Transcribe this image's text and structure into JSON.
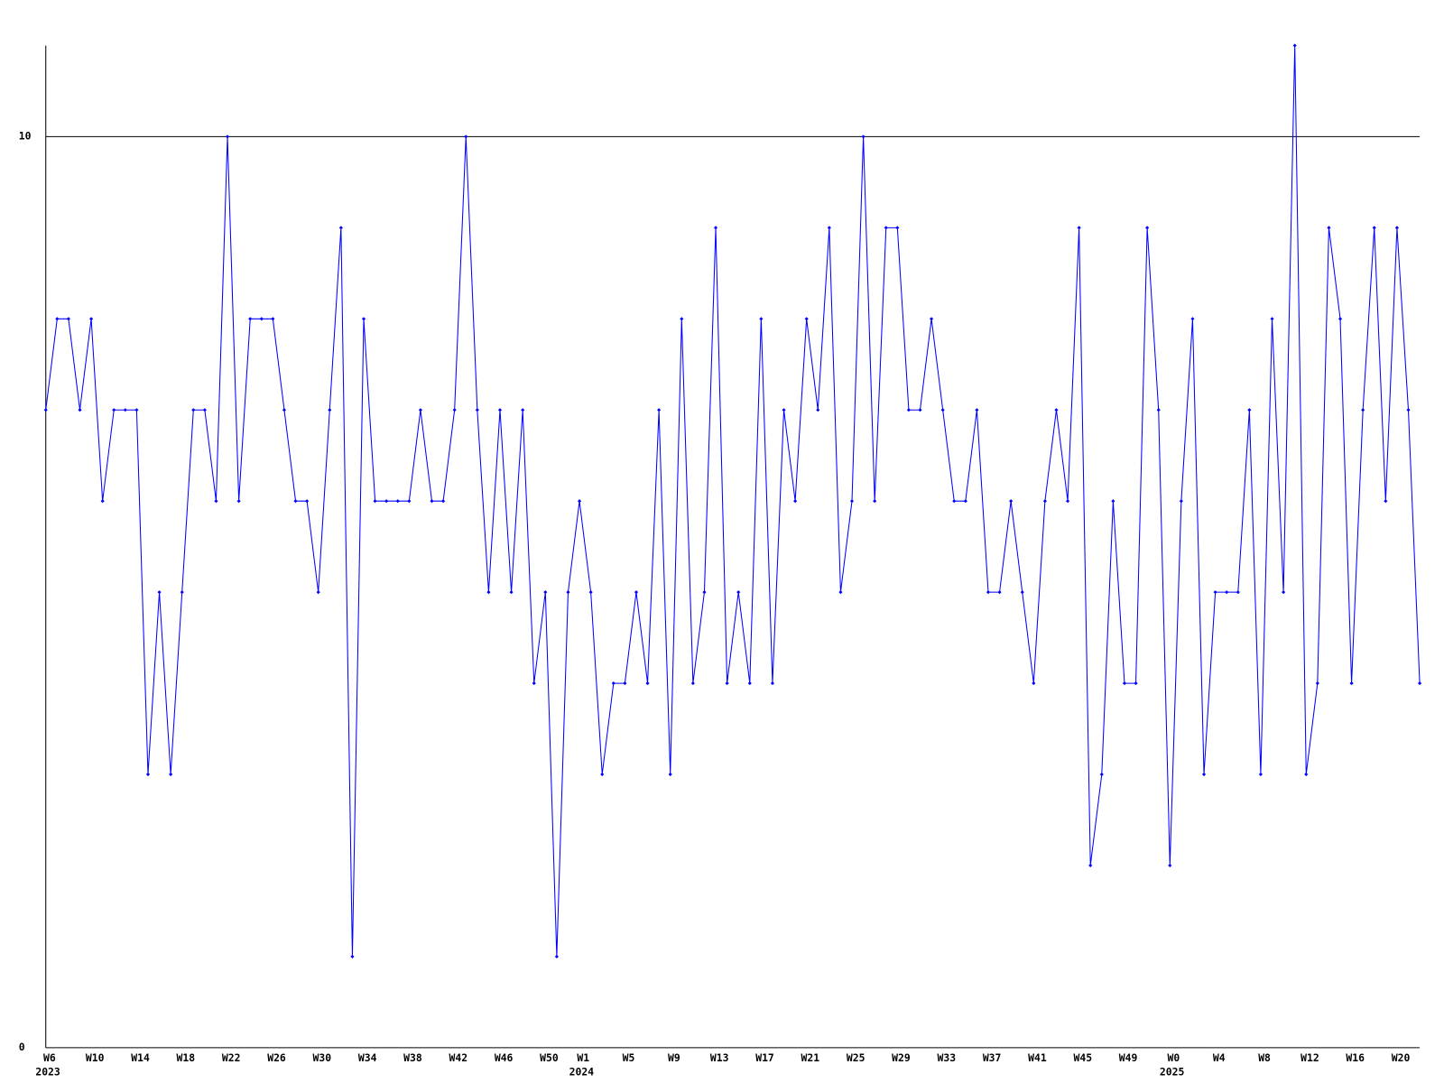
{
  "chart_data": {
    "type": "line",
    "color": "#0000ff",
    "categories": [
      "W6",
      null,
      null,
      null,
      "W10",
      null,
      null,
      null,
      "W14",
      null,
      null,
      null,
      "W18",
      null,
      null,
      null,
      "W22",
      null,
      null,
      null,
      "W26",
      null,
      null,
      null,
      "W30",
      null,
      null,
      null,
      "W34",
      null,
      null,
      null,
      "W38",
      null,
      null,
      null,
      "W42",
      null,
      null,
      null,
      "W46",
      null,
      null,
      null,
      "W50",
      null,
      null,
      "W1",
      null,
      null,
      null,
      "W5",
      null,
      null,
      null,
      "W9",
      null,
      null,
      null,
      "W13",
      null,
      null,
      null,
      "W17",
      null,
      null,
      null,
      "W21",
      null,
      null,
      null,
      "W25",
      null,
      null,
      null,
      "W29",
      null,
      null,
      null,
      "W33",
      null,
      null,
      null,
      "W37",
      null,
      null,
      null,
      "W41",
      null,
      null,
      null,
      "W45",
      null,
      null,
      null,
      "W49",
      null,
      null,
      null,
      "W0",
      null,
      null,
      null,
      "W4",
      null,
      null,
      null,
      "W8",
      null,
      null,
      null,
      "W12",
      null,
      null,
      null,
      "W16",
      null,
      null,
      null,
      "W20",
      null,
      null
    ],
    "year_labels": [
      "2023",
      null,
      null,
      null,
      null,
      null,
      null,
      null,
      null,
      null,
      null,
      null,
      null,
      null,
      null,
      null,
      null,
      null,
      null,
      null,
      null,
      null,
      null,
      null,
      null,
      null,
      null,
      null,
      null,
      null,
      null,
      null,
      null,
      null,
      null,
      null,
      null,
      null,
      null,
      null,
      null,
      null,
      null,
      null,
      null,
      null,
      null,
      "2024",
      null,
      null,
      null,
      null,
      null,
      null,
      null,
      null,
      null,
      null,
      null,
      null,
      null,
      null,
      null,
      null,
      null,
      null,
      null,
      null,
      null,
      null,
      null,
      null,
      null,
      null,
      null,
      null,
      null,
      null,
      null,
      null,
      null,
      null,
      null,
      null,
      null,
      null,
      null,
      null,
      null,
      null,
      null,
      null,
      null,
      null,
      null,
      null,
      null,
      null,
      null,
      "2025",
      null,
      null,
      null,
      null,
      null,
      null,
      null,
      null,
      null,
      null,
      null,
      null,
      null,
      null,
      null,
      null,
      null,
      null,
      null,
      null,
      null
    ],
    "values": [
      7,
      8,
      8,
      7,
      8,
      6,
      7,
      7,
      7,
      3,
      5,
      3,
      5,
      7,
      7,
      6,
      10,
      6,
      8,
      8,
      8,
      7,
      6,
      6,
      5,
      7,
      9,
      1,
      8,
      6,
      6,
      6,
      6,
      7,
      6,
      6,
      7,
      10,
      7,
      5,
      7,
      5,
      7,
      4,
      5,
      1,
      5,
      6,
      5,
      3,
      4,
      4,
      5,
      4,
      7,
      3,
      8,
      4,
      5,
      9,
      4,
      5,
      4,
      8,
      4,
      7,
      6,
      8,
      7,
      9,
      5,
      6,
      10,
      6,
      9,
      9,
      7,
      7,
      8,
      7,
      6,
      6,
      7,
      5,
      5,
      6,
      5,
      4,
      6,
      7,
      6,
      9,
      2,
      3,
      6,
      4,
      4,
      9,
      7,
      2,
      6,
      8,
      3,
      5,
      5,
      5,
      7,
      3,
      8,
      5,
      11,
      3,
      4,
      9,
      8,
      4,
      7,
      9,
      6,
      9,
      7,
      4
    ],
    "ylim": [
      0,
      11
    ],
    "yticks": [
      0,
      10
    ],
    "grid": true
  }
}
